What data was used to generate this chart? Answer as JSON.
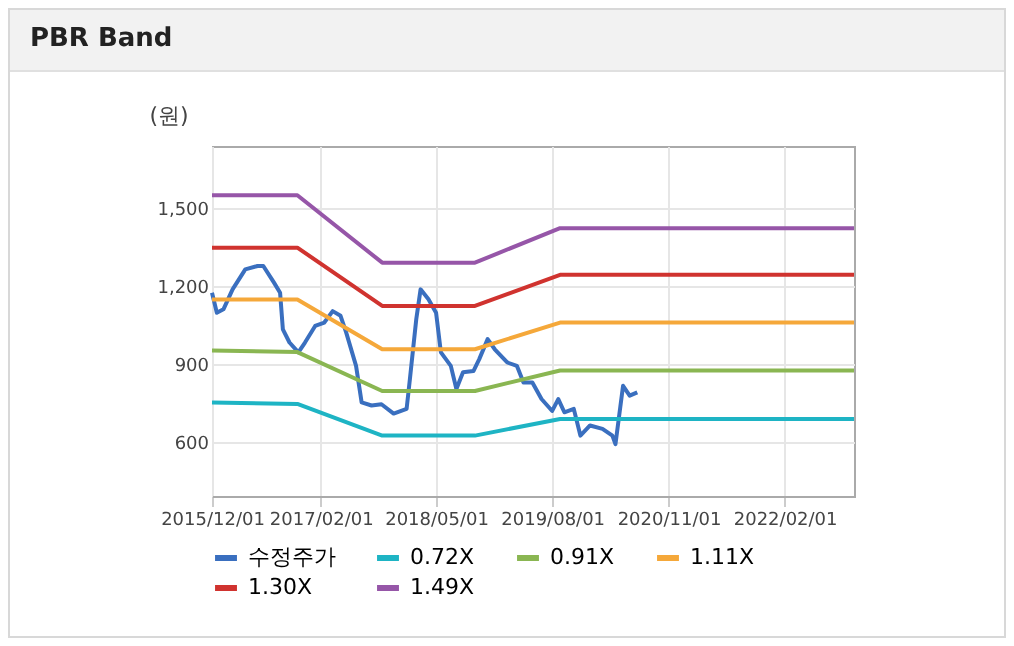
{
  "chart_data": {
    "type": "line",
    "title": "PBR Band",
    "ylabel": "(원)",
    "xlim": [
      "2015-12-01",
      "2022-11-01"
    ],
    "xticks": [
      {
        "value": "2015-12-01",
        "label": "2015/12/01"
      },
      {
        "value": "2017-02-01",
        "label": "2017/02/01"
      },
      {
        "value": "2018-05-01",
        "label": "2018/05/01"
      },
      {
        "value": "2019-08-01",
        "label": "2019/08/01"
      },
      {
        "value": "2020-11-01",
        "label": "2020/11/01"
      },
      {
        "value": "2022-02-01",
        "label": "2022/02/01"
      }
    ],
    "ylim": [
      390,
      1740
    ],
    "yticks": [
      {
        "value": 600,
        "label": "600"
      },
      {
        "value": 900,
        "label": "900"
      },
      {
        "value": 1200,
        "label": "1,200"
      },
      {
        "value": 1500,
        "label": "1,500"
      }
    ],
    "grid": true,
    "legend": "bottom",
    "marker": "none",
    "line_style": "solid",
    "series": [
      {
        "name": "수정주가",
        "color": "#3a6fbf",
        "x": [
          "2015-12-01",
          "2015-12-20",
          "2016-01-15",
          "2016-02-20",
          "2016-04-10",
          "2016-05-28",
          "2016-06-20",
          "2016-08-01",
          "2016-08-25",
          "2016-09-05",
          "2016-10-01",
          "2016-11-05",
          "2016-12-01",
          "2017-01-10",
          "2017-02-15",
          "2017-03-20",
          "2017-04-20",
          "2017-05-12",
          "2017-06-20",
          "2017-07-12",
          "2017-08-20",
          "2017-09-28",
          "2017-11-15",
          "2018-01-05",
          "2018-01-18",
          "2018-02-12",
          "2018-03-01",
          "2018-04-01",
          "2018-05-01",
          "2018-05-20",
          "2018-06-28",
          "2018-07-20",
          "2018-08-15",
          "2018-09-25",
          "2018-10-18",
          "2018-11-20",
          "2018-12-18",
          "2019-02-05",
          "2019-03-15",
          "2019-04-10",
          "2019-05-15",
          "2019-06-20",
          "2019-08-01",
          "2019-08-25",
          "2019-09-18",
          "2019-10-25",
          "2019-11-20",
          "2019-12-28",
          "2020-02-15",
          "2020-03-25",
          "2020-04-06",
          "2020-05-06",
          "2020-06-01",
          "2020-07-01"
        ],
        "values": [
          1174,
          1097,
          1110,
          1187,
          1264,
          1277,
          1277,
          1213,
          1174,
          1033,
          982,
          944,
          982,
          1046,
          1059,
          1103,
          1085,
          1021,
          892,
          751,
          739,
          744,
          708,
          726,
          841,
          1072,
          1187,
          1149,
          1097,
          944,
          892,
          803,
          867,
          872,
          918,
          995,
          956,
          905,
          892,
          828,
          828,
          764,
          718,
          764,
          713,
          726,
          623,
          662,
          649,
          623,
          590,
          815,
          777,
          790
        ]
      },
      {
        "name": "0.72X",
        "color": "#1eb4c4",
        "x": [
          "2015-12-01",
          "2016-11-01",
          "2017-10-01",
          "2018-10-01",
          "2019-09-01",
          "2022-11-01"
        ],
        "values": [
          751,
          745,
          623,
          623,
          687,
          687
        ]
      },
      {
        "name": "0.91X",
        "color": "#8ab652",
        "x": [
          "2015-12-01",
          "2016-11-01",
          "2017-10-01",
          "2018-10-01",
          "2019-09-01",
          "2022-11-01"
        ],
        "values": [
          951,
          945,
          795,
          795,
          874,
          874
        ]
      },
      {
        "name": "1.11X",
        "color": "#f5a83a",
        "x": [
          "2015-12-01",
          "2016-11-01",
          "2017-10-01",
          "2018-10-01",
          "2019-09-01",
          "2022-11-01"
        ],
        "values": [
          1148,
          1148,
          956,
          956,
          1059,
          1059
        ]
      },
      {
        "name": "1.30X",
        "color": "#d0332f",
        "x": [
          "2015-12-01",
          "2016-11-01",
          "2017-10-01",
          "2018-10-01",
          "2019-09-01",
          "2022-11-01"
        ],
        "values": [
          1348,
          1348,
          1123,
          1123,
          1243,
          1243
        ]
      },
      {
        "name": "1.49X",
        "color": "#9656a8",
        "x": [
          "2015-12-01",
          "2016-11-01",
          "2017-10-01",
          "2018-10-01",
          "2019-09-01",
          "2022-11-01"
        ],
        "values": [
          1550,
          1550,
          1290,
          1290,
          1423,
          1423
        ]
      }
    ]
  }
}
